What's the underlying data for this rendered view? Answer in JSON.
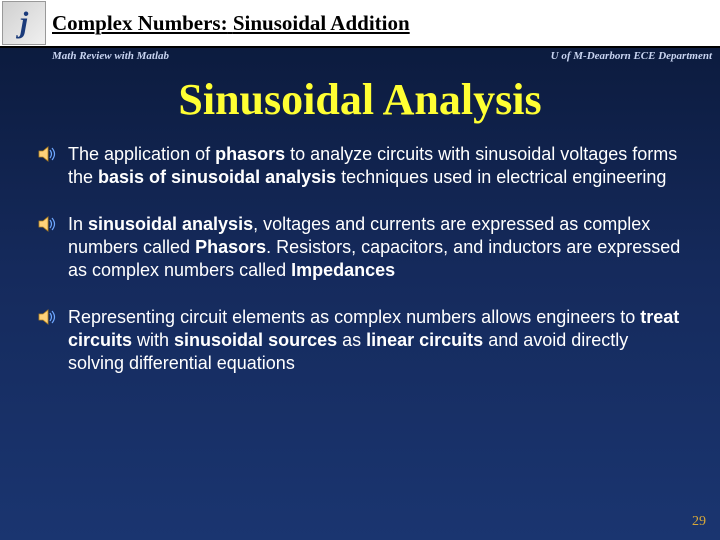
{
  "header": {
    "logo_text": "j",
    "title_prefix": "Complex Numbers:",
    "title_suffix": "Sinusoidal Addition",
    "sub_left": "Math Review with Matlab",
    "sub_right": "U of M-Dearborn ECE Department"
  },
  "main_title": "Sinusoidal Analysis",
  "bullets": [
    {
      "parts": [
        {
          "t": "The application of "
        },
        {
          "t": "phasors",
          "b": true
        },
        {
          "t": " to analyze circuits with sinusoidal voltages forms the "
        },
        {
          "t": "basis of sinusoidal analysis",
          "b": true
        },
        {
          "t": " techniques used in electrical engineering"
        }
      ]
    },
    {
      "parts": [
        {
          "t": "In "
        },
        {
          "t": "sinusoidal analysis",
          "b": true
        },
        {
          "t": ", voltages and currents are expressed as complex numbers called "
        },
        {
          "t": "Phasors",
          "b": true
        },
        {
          "t": ". Resistors, capacitors, and inductors are expressed as complex numbers called "
        },
        {
          "t": "Impedances",
          "b": true
        }
      ]
    },
    {
      "parts": [
        {
          "t": "Representing circuit elements as complex numbers allows engineers to "
        },
        {
          "t": "treat circuits",
          "b": true
        },
        {
          "t": " with "
        },
        {
          "t": "sinusoidal sources",
          "b": true
        },
        {
          "t": " as "
        },
        {
          "t": "linear circuits",
          "b": true
        },
        {
          "t": " and avoid directly solving differential equations"
        }
      ]
    }
  ],
  "page_number": "29",
  "colors": {
    "title_color": "#ffff33",
    "text_color": "#ffffff",
    "bg_top": "#0a1838",
    "bg_bottom": "#1a3570",
    "page_num_color": "#d8a838"
  }
}
